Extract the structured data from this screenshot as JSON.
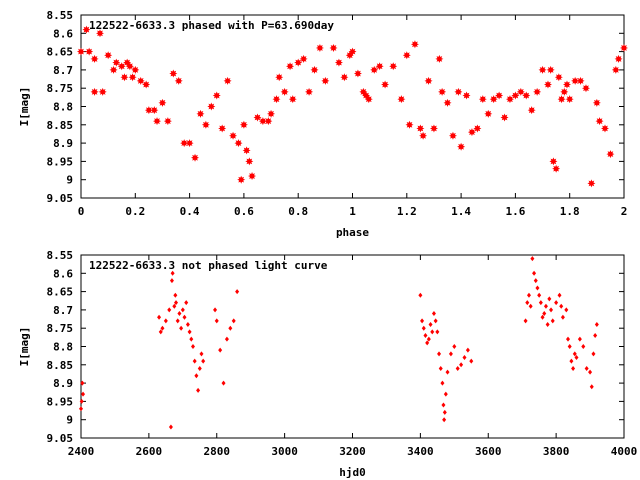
{
  "chart_data": [
    {
      "type": "scatter",
      "title": "122522-6633.3 phased with P=63.690day",
      "xlabel": "phase",
      "ylabel": "I[mag]",
      "xlim": [
        0,
        2
      ],
      "ylim": [
        9.05,
        8.55
      ],
      "y_inverted": true,
      "grid": false,
      "legend": "none",
      "marker": "star",
      "color": "#ff0000",
      "xticks": [
        0,
        0.2,
        0.4,
        0.6,
        0.8,
        1,
        1.2,
        1.4,
        1.6,
        1.8,
        2
      ],
      "xtick_labels": [
        "0",
        "0.2",
        "0.4",
        "0.6",
        "0.8",
        "1",
        "1.2",
        "1.4",
        "1.6",
        "1.8",
        "2"
      ],
      "yticks": [
        8.55,
        8.6,
        8.65,
        8.7,
        8.75,
        8.8,
        8.85,
        8.9,
        8.95,
        9.0,
        9.05
      ],
      "ytick_labels": [
        "8.55",
        "8.6",
        "8.65",
        "8.7",
        "8.75",
        "8.8",
        "8.85",
        "8.9",
        "8.95",
        "9",
        "9.05"
      ],
      "points": [
        [
          0.0,
          8.65
        ],
        [
          0.02,
          8.59
        ],
        [
          0.03,
          8.65
        ],
        [
          0.05,
          8.67
        ],
        [
          0.05,
          8.76
        ],
        [
          0.07,
          8.6
        ],
        [
          0.08,
          8.76
        ],
        [
          0.1,
          8.66
        ],
        [
          0.12,
          8.7
        ],
        [
          0.13,
          8.68
        ],
        [
          0.15,
          8.69
        ],
        [
          0.16,
          8.72
        ],
        [
          0.17,
          8.68
        ],
        [
          0.18,
          8.69
        ],
        [
          0.19,
          8.72
        ],
        [
          0.2,
          8.7
        ],
        [
          0.22,
          8.73
        ],
        [
          0.24,
          8.74
        ],
        [
          0.25,
          8.81
        ],
        [
          0.27,
          8.81
        ],
        [
          0.28,
          8.84
        ],
        [
          0.3,
          8.79
        ],
        [
          0.32,
          8.84
        ],
        [
          0.34,
          8.71
        ],
        [
          0.36,
          8.73
        ],
        [
          0.38,
          8.9
        ],
        [
          0.4,
          8.9
        ],
        [
          0.42,
          8.94
        ],
        [
          0.44,
          8.82
        ],
        [
          0.46,
          8.85
        ],
        [
          0.48,
          8.8
        ],
        [
          0.5,
          8.77
        ],
        [
          0.52,
          8.86
        ],
        [
          0.54,
          8.73
        ],
        [
          0.56,
          8.88
        ],
        [
          0.58,
          8.9
        ],
        [
          0.59,
          9.0
        ],
        [
          0.6,
          8.85
        ],
        [
          0.61,
          8.92
        ],
        [
          0.62,
          8.95
        ],
        [
          0.63,
          8.99
        ],
        [
          0.65,
          8.83
        ],
        [
          0.67,
          8.84
        ],
        [
          0.69,
          8.84
        ],
        [
          0.7,
          8.82
        ],
        [
          0.72,
          8.78
        ],
        [
          0.73,
          8.72
        ],
        [
          0.75,
          8.76
        ],
        [
          0.77,
          8.69
        ],
        [
          0.78,
          8.78
        ],
        [
          0.8,
          8.68
        ],
        [
          0.82,
          8.67
        ],
        [
          0.84,
          8.76
        ],
        [
          0.86,
          8.7
        ],
        [
          0.88,
          8.64
        ],
        [
          0.9,
          8.73
        ],
        [
          0.93,
          8.64
        ],
        [
          0.95,
          8.68
        ],
        [
          0.97,
          8.72
        ],
        [
          0.99,
          8.66
        ],
        [
          1.0,
          8.65
        ],
        [
          1.02,
          8.71
        ],
        [
          1.04,
          8.76
        ],
        [
          1.05,
          8.77
        ],
        [
          1.06,
          8.78
        ],
        [
          1.08,
          8.7
        ],
        [
          1.1,
          8.69
        ],
        [
          1.12,
          8.74
        ],
        [
          1.15,
          8.69
        ],
        [
          1.18,
          8.78
        ],
        [
          1.2,
          8.66
        ],
        [
          1.21,
          8.85
        ],
        [
          1.23,
          8.63
        ],
        [
          1.25,
          8.86
        ],
        [
          1.26,
          8.88
        ],
        [
          1.28,
          8.73
        ],
        [
          1.3,
          8.86
        ],
        [
          1.32,
          8.67
        ],
        [
          1.33,
          8.76
        ],
        [
          1.35,
          8.79
        ],
        [
          1.37,
          8.88
        ],
        [
          1.39,
          8.76
        ],
        [
          1.4,
          8.91
        ],
        [
          1.42,
          8.77
        ],
        [
          1.44,
          8.87
        ],
        [
          1.46,
          8.86
        ],
        [
          1.48,
          8.78
        ],
        [
          1.5,
          8.82
        ],
        [
          1.52,
          8.78
        ],
        [
          1.54,
          8.77
        ],
        [
          1.56,
          8.83
        ],
        [
          1.58,
          8.78
        ],
        [
          1.6,
          8.77
        ],
        [
          1.62,
          8.76
        ],
        [
          1.64,
          8.77
        ],
        [
          1.66,
          8.81
        ],
        [
          1.68,
          8.76
        ],
        [
          1.7,
          8.7
        ],
        [
          1.72,
          8.74
        ],
        [
          1.73,
          8.7
        ],
        [
          1.74,
          8.95
        ],
        [
          1.75,
          8.97
        ],
        [
          1.76,
          8.72
        ],
        [
          1.77,
          8.78
        ],
        [
          1.78,
          8.76
        ],
        [
          1.79,
          8.74
        ],
        [
          1.8,
          8.78
        ],
        [
          1.82,
          8.73
        ],
        [
          1.84,
          8.73
        ],
        [
          1.86,
          8.75
        ],
        [
          1.88,
          9.01
        ],
        [
          1.9,
          8.79
        ],
        [
          1.91,
          8.84
        ],
        [
          1.93,
          8.86
        ],
        [
          1.95,
          8.93
        ],
        [
          1.97,
          8.7
        ],
        [
          1.98,
          8.67
        ],
        [
          2.0,
          8.64
        ]
      ]
    },
    {
      "type": "scatter",
      "title": "122522-6633.3 not phased light curve",
      "xlabel": "hjd0",
      "ylabel": "I[mag]",
      "xlim": [
        2400,
        4000
      ],
      "ylim": [
        9.05,
        8.55
      ],
      "y_inverted": true,
      "grid": false,
      "legend": "none",
      "marker": "diamond",
      "color": "#ff0000",
      "xticks": [
        2400,
        2600,
        2800,
        3000,
        3200,
        3400,
        3600,
        3800,
        4000
      ],
      "xtick_labels": [
        "2400",
        "2600",
        "2800",
        "3000",
        "3200",
        "3400",
        "3600",
        "3800",
        "4000"
      ],
      "yticks": [
        8.55,
        8.6,
        8.65,
        8.7,
        8.75,
        8.8,
        8.85,
        8.9,
        8.95,
        9.0,
        9.05
      ],
      "ytick_labels": [
        "8.55",
        "8.6",
        "8.65",
        "8.7",
        "8.75",
        "8.8",
        "8.85",
        "8.9",
        "8.95",
        "9",
        "9.05"
      ],
      "points": [
        [
          2400,
          8.97
        ],
        [
          2402,
          8.95
        ],
        [
          2404,
          8.9
        ],
        [
          2406,
          8.93
        ],
        [
          2630,
          8.72
        ],
        [
          2635,
          8.76
        ],
        [
          2640,
          8.75
        ],
        [
          2650,
          8.73
        ],
        [
          2660,
          8.7
        ],
        [
          2665,
          9.02
        ],
        [
          2668,
          8.62
        ],
        [
          2670,
          8.6
        ],
        [
          2675,
          8.69
        ],
        [
          2678,
          8.66
        ],
        [
          2680,
          8.68
        ],
        [
          2685,
          8.73
        ],
        [
          2690,
          8.71
        ],
        [
          2695,
          8.75
        ],
        [
          2700,
          8.7
        ],
        [
          2705,
          8.72
        ],
        [
          2710,
          8.68
        ],
        [
          2715,
          8.74
        ],
        [
          2720,
          8.76
        ],
        [
          2725,
          8.78
        ],
        [
          2730,
          8.8
        ],
        [
          2735,
          8.84
        ],
        [
          2740,
          8.88
        ],
        [
          2745,
          8.92
        ],
        [
          2750,
          8.86
        ],
        [
          2755,
          8.82
        ],
        [
          2760,
          8.84
        ],
        [
          2795,
          8.7
        ],
        [
          2800,
          8.73
        ],
        [
          2810,
          8.81
        ],
        [
          2820,
          8.9
        ],
        [
          2830,
          8.78
        ],
        [
          2840,
          8.75
        ],
        [
          2850,
          8.73
        ],
        [
          2860,
          8.65
        ],
        [
          3400,
          8.66
        ],
        [
          3405,
          8.73
        ],
        [
          3410,
          8.75
        ],
        [
          3415,
          8.77
        ],
        [
          3420,
          8.79
        ],
        [
          3425,
          8.78
        ],
        [
          3430,
          8.74
        ],
        [
          3435,
          8.76
        ],
        [
          3440,
          8.71
        ],
        [
          3445,
          8.73
        ],
        [
          3450,
          8.76
        ],
        [
          3455,
          8.82
        ],
        [
          3460,
          8.86
        ],
        [
          3465,
          8.9
        ],
        [
          3468,
          8.96
        ],
        [
          3470,
          9.0
        ],
        [
          3472,
          8.98
        ],
        [
          3475,
          8.93
        ],
        [
          3480,
          8.87
        ],
        [
          3490,
          8.82
        ],
        [
          3500,
          8.8
        ],
        [
          3510,
          8.86
        ],
        [
          3520,
          8.85
        ],
        [
          3530,
          8.83
        ],
        [
          3540,
          8.81
        ],
        [
          3550,
          8.84
        ],
        [
          3710,
          8.73
        ],
        [
          3715,
          8.68
        ],
        [
          3720,
          8.66
        ],
        [
          3725,
          8.69
        ],
        [
          3730,
          8.56
        ],
        [
          3735,
          8.6
        ],
        [
          3740,
          8.62
        ],
        [
          3745,
          8.64
        ],
        [
          3750,
          8.66
        ],
        [
          3755,
          8.68
        ],
        [
          3760,
          8.72
        ],
        [
          3765,
          8.71
        ],
        [
          3770,
          8.69
        ],
        [
          3775,
          8.74
        ],
        [
          3780,
          8.67
        ],
        [
          3785,
          8.7
        ],
        [
          3790,
          8.73
        ],
        [
          3800,
          8.68
        ],
        [
          3810,
          8.66
        ],
        [
          3815,
          8.69
        ],
        [
          3820,
          8.72
        ],
        [
          3830,
          8.7
        ],
        [
          3835,
          8.78
        ],
        [
          3840,
          8.8
        ],
        [
          3845,
          8.84
        ],
        [
          3850,
          8.86
        ],
        [
          3855,
          8.82
        ],
        [
          3860,
          8.83
        ],
        [
          3870,
          8.78
        ],
        [
          3880,
          8.8
        ],
        [
          3890,
          8.86
        ],
        [
          3900,
          8.87
        ],
        [
          3905,
          8.91
        ],
        [
          3910,
          8.82
        ],
        [
          3915,
          8.77
        ],
        [
          3920,
          8.74
        ]
      ]
    }
  ]
}
